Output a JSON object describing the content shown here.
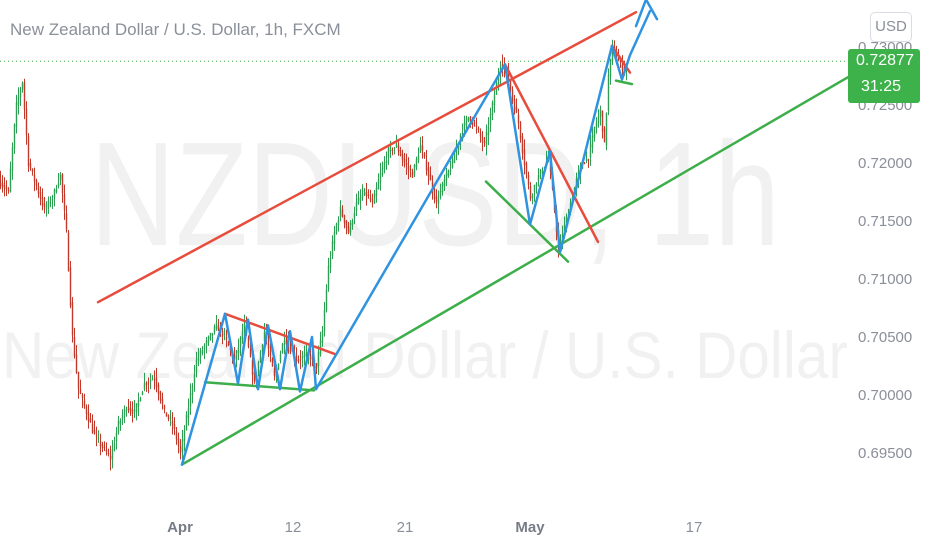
{
  "header": {
    "title": "New Zealand Dollar / U.S. Dollar, 1h, FXCM",
    "currency": "USD"
  },
  "watermark": {
    "symbol": "NZDUSD, 1h",
    "name": "New Zealand Dollar / U.S. Dollar"
  },
  "last_price": {
    "value": "0.72877",
    "countdown": "31:25",
    "color": "#3db24a"
  },
  "colors": {
    "up_candle": "#2e9e55",
    "down_candle": "#c0392b",
    "channel_top": "#e74c3c",
    "channel_bottom": "#3cae4a",
    "wave": "#2f93e0"
  },
  "chart_data": {
    "type": "candlestick",
    "title": "New Zealand Dollar / U.S. Dollar, 1h, FXCM",
    "y_ticks": [
      "0.69500",
      "0.70000",
      "0.70500",
      "0.71000",
      "0.71500",
      "0.72000",
      "0.72500",
      "0.73000"
    ],
    "x_ticks": [
      {
        "label": "Apr",
        "bold": true
      },
      {
        "label": "12",
        "bold": false
      },
      {
        "label": "21",
        "bold": false
      },
      {
        "label": "May",
        "bold": true
      },
      {
        "label": "17",
        "bold": false
      }
    ],
    "ylim": [
      0.6925,
      0.7325
    ],
    "path": [
      [
        0,
        0.7185
      ],
      [
        10,
        0.7175
      ],
      [
        18,
        0.725
      ],
      [
        24,
        0.727
      ],
      [
        30,
        0.72
      ],
      [
        38,
        0.718
      ],
      [
        46,
        0.716
      ],
      [
        54,
        0.717
      ],
      [
        62,
        0.719
      ],
      [
        68,
        0.714
      ],
      [
        74,
        0.705
      ],
      [
        80,
        0.7005
      ],
      [
        88,
        0.6985
      ],
      [
        96,
        0.6965
      ],
      [
        104,
        0.6955
      ],
      [
        112,
        0.6945
      ],
      [
        120,
        0.6975
      ],
      [
        128,
        0.699
      ],
      [
        136,
        0.6985
      ],
      [
        146,
        0.701
      ],
      [
        156,
        0.7015
      ],
      [
        166,
        0.6985
      ],
      [
        174,
        0.6975
      ],
      [
        182,
        0.695
      ],
      [
        190,
        0.699
      ],
      [
        198,
        0.703
      ],
      [
        208,
        0.7045
      ],
      [
        218,
        0.706
      ],
      [
        226,
        0.705
      ],
      [
        236,
        0.703
      ],
      [
        246,
        0.706
      ],
      [
        256,
        0.701
      ],
      [
        266,
        0.7055
      ],
      [
        276,
        0.7015
      ],
      [
        286,
        0.705
      ],
      [
        298,
        0.703
      ],
      [
        310,
        0.7035
      ],
      [
        318,
        0.7025
      ],
      [
        324,
        0.7055
      ],
      [
        330,
        0.711
      ],
      [
        336,
        0.714
      ],
      [
        342,
        0.716
      ],
      [
        350,
        0.714
      ],
      [
        358,
        0.7165
      ],
      [
        366,
        0.7175
      ],
      [
        374,
        0.7165
      ],
      [
        382,
        0.719
      ],
      [
        390,
        0.721
      ],
      [
        398,
        0.7215
      ],
      [
        406,
        0.72
      ],
      [
        414,
        0.719
      ],
      [
        422,
        0.7215
      ],
      [
        430,
        0.719
      ],
      [
        438,
        0.7165
      ],
      [
        446,
        0.7185
      ],
      [
        454,
        0.72
      ],
      [
        462,
        0.7225
      ],
      [
        470,
        0.724
      ],
      [
        478,
        0.723
      ],
      [
        486,
        0.7215
      ],
      [
        494,
        0.725
      ],
      [
        502,
        0.7285
      ],
      [
        508,
        0.728
      ],
      [
        514,
        0.7255
      ],
      [
        520,
        0.7235
      ],
      [
        526,
        0.72
      ],
      [
        532,
        0.717
      ],
      [
        538,
        0.7185
      ],
      [
        544,
        0.7195
      ],
      [
        550,
        0.7205
      ],
      [
        556,
        0.716
      ],
      [
        560,
        0.7125
      ],
      [
        566,
        0.7145
      ],
      [
        572,
        0.7165
      ],
      [
        578,
        0.7185
      ],
      [
        584,
        0.72
      ],
      [
        590,
        0.7205
      ],
      [
        596,
        0.723
      ],
      [
        602,
        0.7245
      ],
      [
        606,
        0.7215
      ],
      [
        610,
        0.7275
      ],
      [
        614,
        0.73
      ],
      [
        618,
        0.729
      ],
      [
        622,
        0.7285
      ],
      [
        626,
        0.728
      ]
    ],
    "channel_top_line": [
      [
        98,
        0.708
      ],
      [
        636,
        0.733
      ]
    ],
    "channel_bottom_line": [
      [
        182,
        0.694
      ],
      [
        848,
        0.7274
      ]
    ],
    "wave_line": [
      [
        182,
        0.694
      ],
      [
        225,
        0.707
      ],
      [
        238,
        0.701
      ],
      [
        248,
        0.7065
      ],
      [
        258,
        0.7005
      ],
      [
        268,
        0.706
      ],
      [
        280,
        0.7005
      ],
      [
        290,
        0.7055
      ],
      [
        300,
        0.7003
      ],
      [
        312,
        0.705
      ],
      [
        316,
        0.7005
      ],
      [
        505,
        0.7285
      ],
      [
        530,
        0.7147
      ],
      [
        550,
        0.721
      ],
      [
        560,
        0.7123
      ],
      [
        612,
        0.7301
      ],
      [
        622,
        0.7272
      ],
      [
        630,
        0.7293
      ],
      [
        650,
        0.7331
      ]
    ],
    "wave_arrowhead": [
      [
        636,
        0.7318
      ],
      [
        646,
        0.7341
      ],
      [
        657,
        0.7324
      ]
    ],
    "red_trendlines": [
      [
        [
          225,
          0.707
        ],
        [
          336,
          0.7035
        ]
      ],
      [
        [
          505,
          0.7285
        ],
        [
          598,
          0.7132
        ]
      ],
      [
        [
          612,
          0.7301
        ],
        [
          630,
          0.7278
        ]
      ]
    ],
    "green_trendlines": [
      [
        [
          205,
          0.7011
        ],
        [
          314,
          0.7004
        ]
      ],
      [
        [
          486,
          0.7184
        ],
        [
          568,
          0.7115
        ]
      ],
      [
        [
          616,
          0.7271
        ],
        [
          632,
          0.7268
        ]
      ]
    ]
  }
}
